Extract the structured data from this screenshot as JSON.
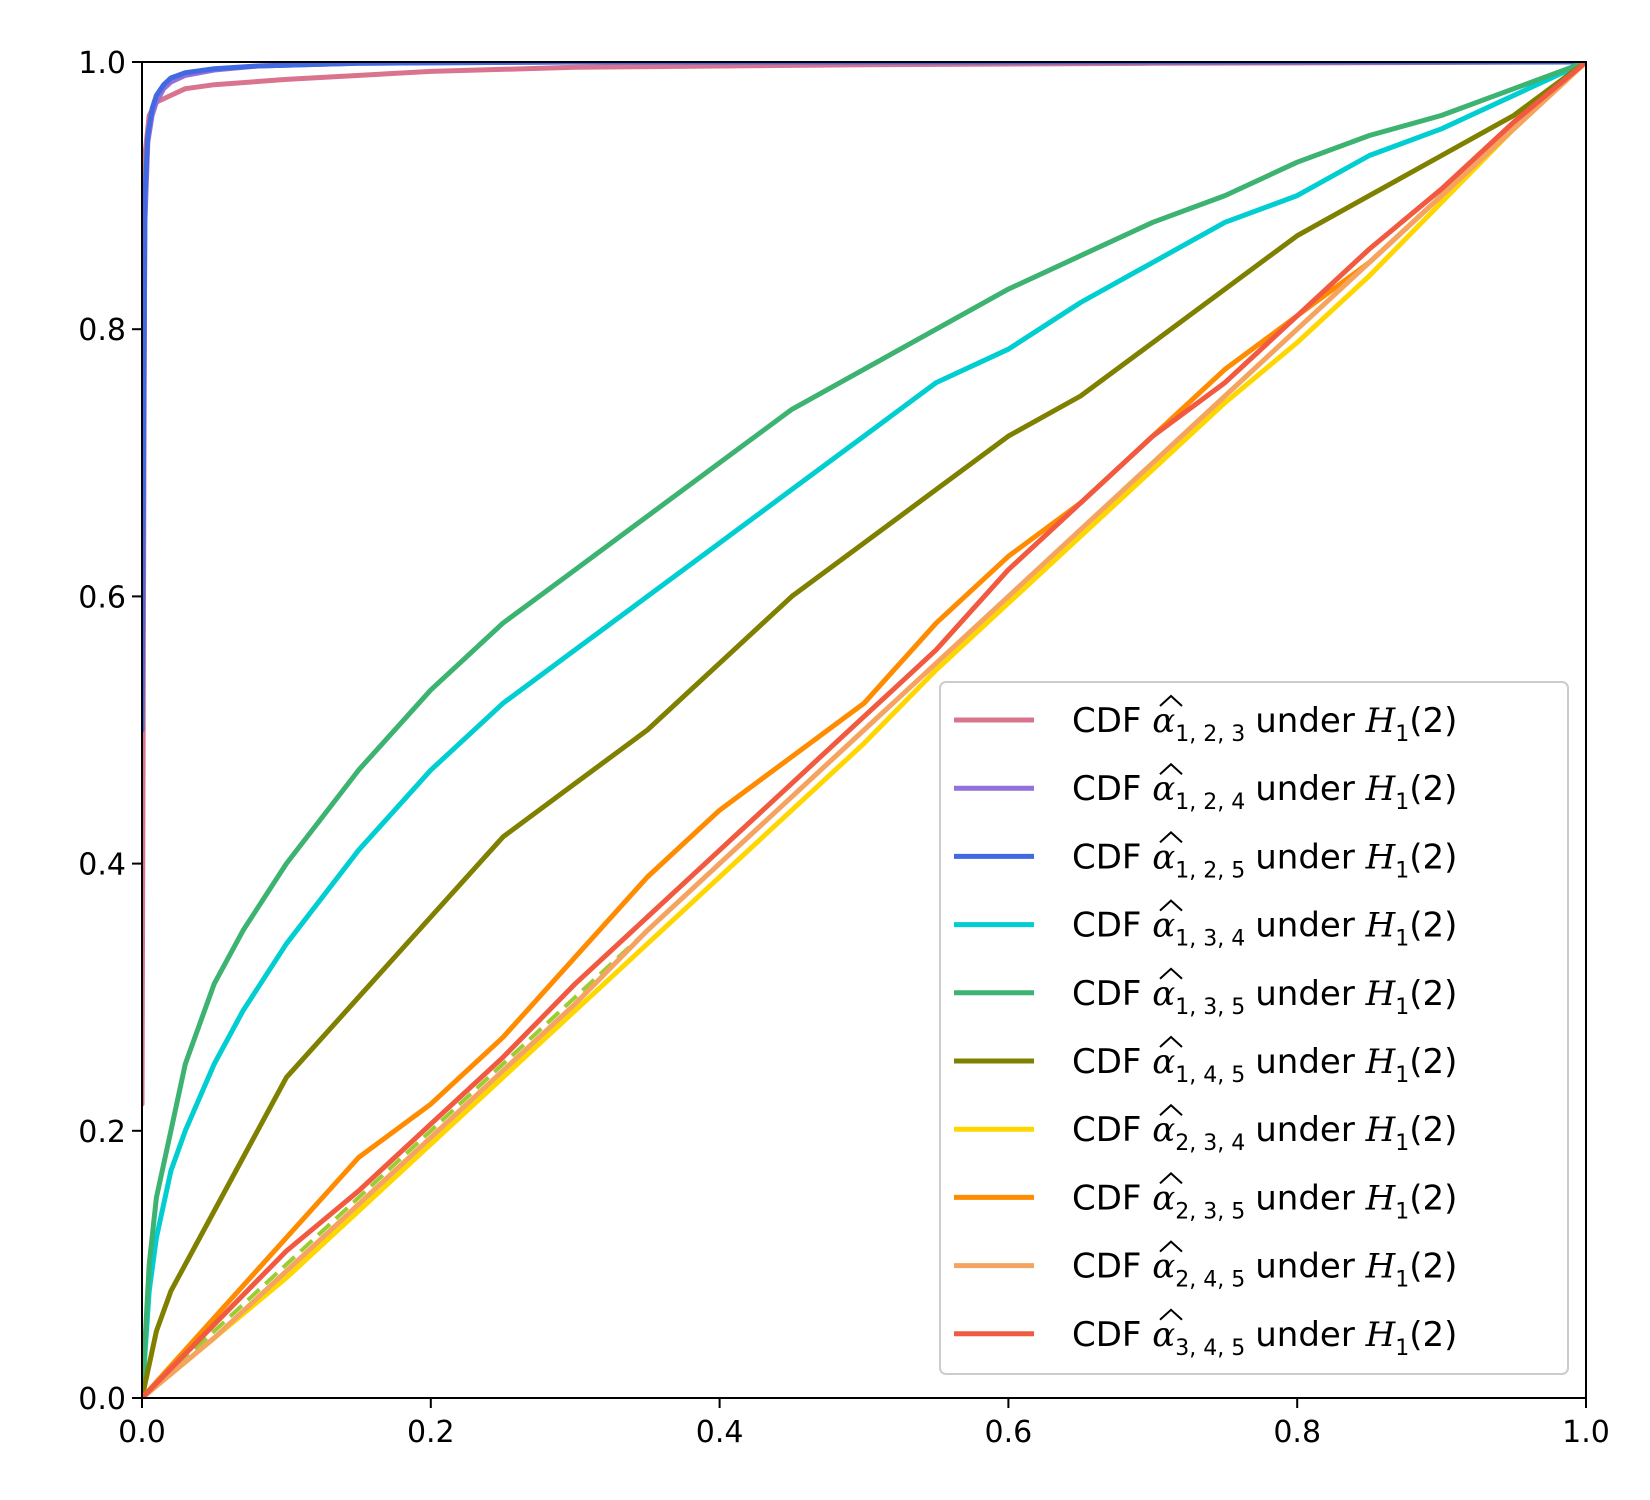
{
  "chart_data": {
    "type": "line",
    "title": "",
    "xlabel": "",
    "ylabel": "",
    "xlim": [
      0,
      1
    ],
    "ylim": [
      0,
      1
    ],
    "x_ticks": [
      "0.0",
      "0.2",
      "0.4",
      "0.6",
      "0.8",
      "1.0"
    ],
    "y_ticks": [
      "0.0",
      "0.2",
      "0.4",
      "0.6",
      "0.8",
      "1.0"
    ],
    "legend_position": "lower-right",
    "reference_line": {
      "name": "uniform CDF (y = x)",
      "style": "dashed",
      "color": "#9acd32",
      "x": [
        0,
        1
      ],
      "y": [
        0,
        1
      ]
    },
    "series": [
      {
        "name": "CDF α̂1,2,3 under H1(2)",
        "label_prefix": "CDF",
        "hat_symbol": "α",
        "subscript": "1, 2, 3",
        "suffix_word": "under",
        "hypothesis": "H",
        "hypothesis_sub": "1",
        "hypothesis_arg": "(2)",
        "color": "#d9738e",
        "x": [
          0,
          0.002,
          0.005,
          0.01,
          0.02,
          0.03,
          0.05,
          0.1,
          0.2,
          0.3,
          0.5,
          0.7,
          1.0
        ],
        "y": [
          0.22,
          0.93,
          0.96,
          0.97,
          0.975,
          0.98,
          0.983,
          0.987,
          0.993,
          0.996,
          0.998,
          0.999,
          1.0
        ]
      },
      {
        "name": "CDF α̂1,2,4 under H1(2)",
        "label_prefix": "CDF",
        "hat_symbol": "α",
        "subscript": "1, 2, 4",
        "suffix_word": "under",
        "hypothesis": "H",
        "hypothesis_sub": "1",
        "hypothesis_arg": "(2)",
        "color": "#9370db",
        "x": [
          0,
          0.002,
          0.004,
          0.007,
          0.01,
          0.015,
          0.02,
          0.03,
          0.05,
          0.08,
          0.15,
          0.3,
          1.0
        ],
        "y": [
          0.5,
          0.88,
          0.94,
          0.96,
          0.97,
          0.98,
          0.985,
          0.99,
          0.994,
          0.997,
          0.999,
          1.0,
          1.0
        ]
      },
      {
        "name": "CDF α̂1,2,5 under H1(2)",
        "label_prefix": "CDF",
        "hat_symbol": "α",
        "subscript": "1, 2, 5",
        "suffix_word": "under",
        "hypothesis": "H",
        "hypothesis_sub": "1",
        "hypothesis_arg": "(2)",
        "color": "#4169e1",
        "x": [
          0,
          0.002,
          0.004,
          0.007,
          0.01,
          0.015,
          0.02,
          0.03,
          0.05,
          0.08,
          0.15,
          0.3,
          1.0
        ],
        "y": [
          0.5,
          0.9,
          0.945,
          0.965,
          0.975,
          0.983,
          0.988,
          0.992,
          0.995,
          0.997,
          0.999,
          1.0,
          1.0
        ]
      },
      {
        "name": "CDF α̂1,3,4 under H1(2)",
        "label_prefix": "CDF",
        "hat_symbol": "α",
        "subscript": "1, 3, 4",
        "suffix_word": "under",
        "hypothesis": "H",
        "hypothesis_sub": "1",
        "hypothesis_arg": "(2)",
        "color": "#00ced1",
        "x": [
          0,
          0.005,
          0.01,
          0.02,
          0.03,
          0.05,
          0.07,
          0.1,
          0.15,
          0.2,
          0.25,
          0.3,
          0.35,
          0.4,
          0.45,
          0.5,
          0.55,
          0.6,
          0.65,
          0.7,
          0.75,
          0.8,
          0.85,
          0.9,
          0.95,
          1.0
        ],
        "y": [
          0,
          0.08,
          0.12,
          0.17,
          0.2,
          0.25,
          0.29,
          0.34,
          0.41,
          0.47,
          0.52,
          0.56,
          0.6,
          0.64,
          0.68,
          0.72,
          0.76,
          0.785,
          0.82,
          0.85,
          0.88,
          0.9,
          0.93,
          0.95,
          0.975,
          1.0
        ]
      },
      {
        "name": "CDF α̂1,3,5 under H1(2)",
        "label_prefix": "CDF",
        "hat_symbol": "α",
        "subscript": "1, 3, 5",
        "suffix_word": "under",
        "hypothesis": "H",
        "hypothesis_sub": "1",
        "hypothesis_arg": "(2)",
        "color": "#3cb371",
        "x": [
          0,
          0.005,
          0.01,
          0.02,
          0.03,
          0.05,
          0.07,
          0.1,
          0.15,
          0.2,
          0.25,
          0.3,
          0.35,
          0.4,
          0.45,
          0.5,
          0.55,
          0.6,
          0.65,
          0.7,
          0.75,
          0.8,
          0.85,
          0.9,
          0.95,
          1.0
        ],
        "y": [
          0,
          0.1,
          0.15,
          0.2,
          0.25,
          0.31,
          0.35,
          0.4,
          0.47,
          0.53,
          0.58,
          0.62,
          0.66,
          0.7,
          0.74,
          0.77,
          0.8,
          0.83,
          0.855,
          0.88,
          0.9,
          0.925,
          0.945,
          0.96,
          0.98,
          1.0
        ]
      },
      {
        "name": "CDF α̂1,4,5 under H1(2)",
        "label_prefix": "CDF",
        "hat_symbol": "α",
        "subscript": "1, 4, 5",
        "suffix_word": "under",
        "hypothesis": "H",
        "hypothesis_sub": "1",
        "hypothesis_arg": "(2)",
        "color": "#808000",
        "x": [
          0,
          0.01,
          0.02,
          0.03,
          0.05,
          0.07,
          0.1,
          0.15,
          0.2,
          0.25,
          0.3,
          0.35,
          0.4,
          0.45,
          0.5,
          0.55,
          0.6,
          0.65,
          0.7,
          0.75,
          0.8,
          0.85,
          0.9,
          0.95,
          1.0
        ],
        "y": [
          0,
          0.05,
          0.08,
          0.1,
          0.14,
          0.18,
          0.24,
          0.3,
          0.36,
          0.42,
          0.46,
          0.5,
          0.55,
          0.6,
          0.64,
          0.68,
          0.72,
          0.75,
          0.79,
          0.83,
          0.87,
          0.9,
          0.93,
          0.96,
          1.0
        ]
      },
      {
        "name": "CDF α̂2,3,4 under H1(2)",
        "label_prefix": "CDF",
        "hat_symbol": "α",
        "subscript": "2, 3, 4",
        "suffix_word": "under",
        "hypothesis": "H",
        "hypothesis_sub": "1",
        "hypothesis_arg": "(2)",
        "color": "#ffd700",
        "x": [
          0,
          0.05,
          0.1,
          0.15,
          0.2,
          0.25,
          0.3,
          0.35,
          0.4,
          0.45,
          0.5,
          0.55,
          0.6,
          0.65,
          0.7,
          0.75,
          0.8,
          0.85,
          0.9,
          0.95,
          1.0
        ],
        "y": [
          0,
          0.045,
          0.09,
          0.14,
          0.19,
          0.24,
          0.29,
          0.34,
          0.39,
          0.44,
          0.49,
          0.545,
          0.595,
          0.645,
          0.695,
          0.745,
          0.79,
          0.84,
          0.895,
          0.95,
          1.0
        ]
      },
      {
        "name": "CDF α̂2,3,5 under H1(2)",
        "label_prefix": "CDF",
        "hat_symbol": "α",
        "subscript": "2, 3, 5",
        "suffix_word": "under",
        "hypothesis": "H",
        "hypothesis_sub": "1",
        "hypothesis_arg": "(2)",
        "color": "#ff8c00",
        "x": [
          0,
          0.05,
          0.1,
          0.15,
          0.2,
          0.25,
          0.3,
          0.35,
          0.4,
          0.45,
          0.5,
          0.55,
          0.6,
          0.65,
          0.7,
          0.75,
          0.8,
          0.85,
          0.9,
          0.95,
          1.0
        ],
        "y": [
          0,
          0.06,
          0.12,
          0.18,
          0.22,
          0.27,
          0.33,
          0.39,
          0.44,
          0.48,
          0.52,
          0.58,
          0.63,
          0.67,
          0.72,
          0.77,
          0.81,
          0.85,
          0.9,
          0.95,
          1.0
        ]
      },
      {
        "name": "CDF α̂2,4,5 under H1(2)",
        "label_prefix": "CDF",
        "hat_symbol": "α",
        "subscript": "2, 4, 5",
        "suffix_word": "under",
        "hypothesis": "H",
        "hypothesis_sub": "1",
        "hypothesis_arg": "(2)",
        "color": "#f4a460",
        "x": [
          0,
          0.05,
          0.1,
          0.15,
          0.2,
          0.25,
          0.3,
          0.35,
          0.4,
          0.45,
          0.5,
          0.55,
          0.6,
          0.65,
          0.7,
          0.75,
          0.8,
          0.85,
          0.9,
          0.95,
          1.0
        ],
        "y": [
          0,
          0.045,
          0.095,
          0.145,
          0.195,
          0.245,
          0.295,
          0.35,
          0.4,
          0.45,
          0.5,
          0.55,
          0.6,
          0.65,
          0.7,
          0.75,
          0.8,
          0.85,
          0.9,
          0.95,
          1.0
        ]
      },
      {
        "name": "CDF α̂3,4,5 under H1(2)",
        "label_prefix": "CDF",
        "hat_symbol": "α",
        "subscript": "3, 4, 5",
        "suffix_word": "under",
        "hypothesis": "H",
        "hypothesis_sub": "1",
        "hypothesis_arg": "(2)",
        "color": "#f15a40",
        "x": [
          0,
          0.05,
          0.1,
          0.15,
          0.2,
          0.25,
          0.3,
          0.35,
          0.4,
          0.45,
          0.5,
          0.55,
          0.6,
          0.65,
          0.7,
          0.75,
          0.8,
          0.85,
          0.9,
          0.95,
          1.0
        ],
        "y": [
          0,
          0.055,
          0.11,
          0.155,
          0.205,
          0.255,
          0.31,
          0.36,
          0.41,
          0.46,
          0.51,
          0.56,
          0.62,
          0.67,
          0.72,
          0.76,
          0.81,
          0.86,
          0.905,
          0.955,
          1.0
        ]
      }
    ]
  }
}
